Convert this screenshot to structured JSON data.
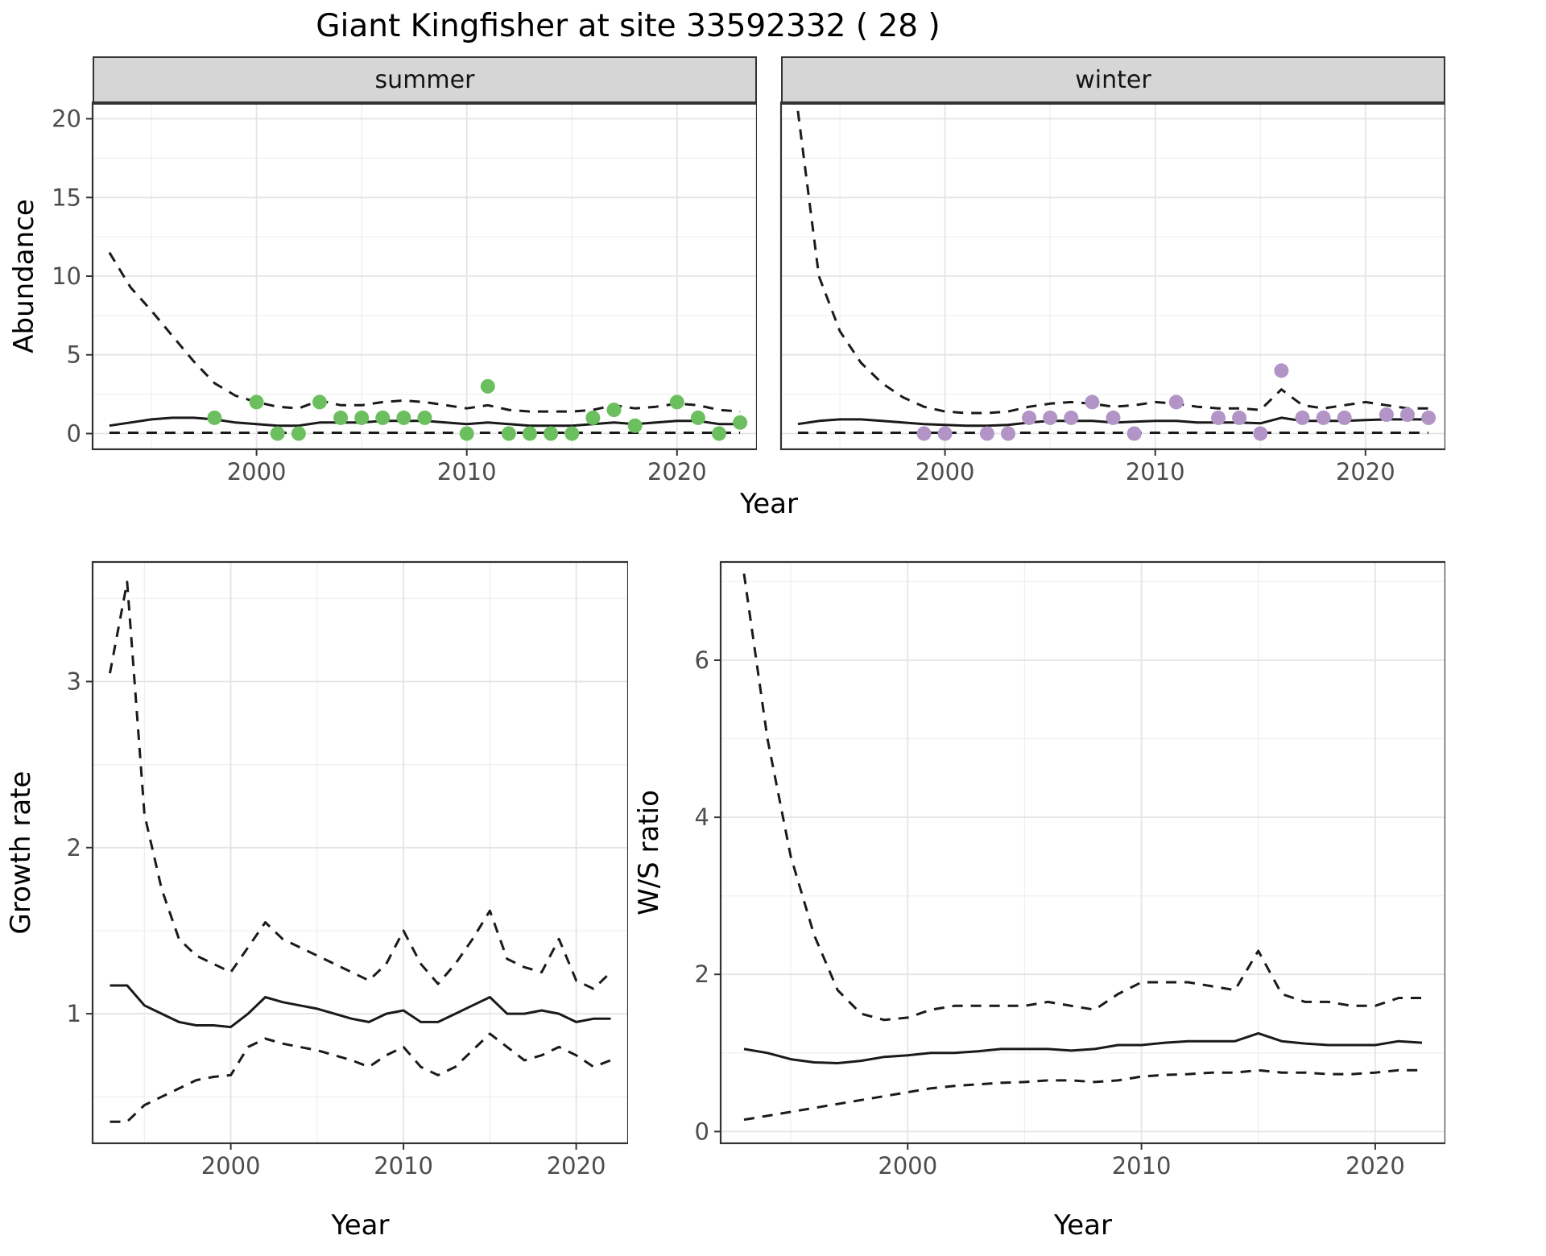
{
  "figure": {
    "title": "Giant Kingfisher at site 33592332 ( 28 )",
    "xlabel": "Year",
    "facets": [
      "summer",
      "winter"
    ],
    "abundance_ylabel": "Abundance",
    "growth_ylabel": "Growth rate",
    "ratio_ylabel": "W/S ratio"
  },
  "colors": {
    "summer_points": "#6cbf5f",
    "winter_points": "#b294c7",
    "line": "#1a1a1a",
    "strip_bg": "#d6d6d6",
    "strip_text": "#141414",
    "grid_major": "#e4e4e4",
    "grid_minor": "#f0f0f0",
    "panel_border": "#333333",
    "tick_text": "#4d4d4d"
  },
  "chart_data": [
    {
      "id": "abundance-summer",
      "type": "line+scatter",
      "facet_label": "summer",
      "xlabel": "Year",
      "ylabel": "Abundance",
      "xlim": [
        1992.2,
        2023.8
      ],
      "ylim": [
        -1,
        21
      ],
      "xticks": [
        2000,
        2010,
        2020
      ],
      "xminor": [
        1995,
        2005,
        2015
      ],
      "yticks": [
        0,
        5,
        10,
        15,
        20
      ],
      "yminor": [
        2.5,
        7.5,
        12.5,
        17.5
      ],
      "years": [
        1993,
        1994,
        1995,
        1996,
        1997,
        1998,
        1999,
        2000,
        2001,
        2002,
        2003,
        2004,
        2005,
        2006,
        2007,
        2008,
        2009,
        2010,
        2011,
        2012,
        2013,
        2014,
        2015,
        2016,
        2017,
        2018,
        2019,
        2020,
        2021,
        2022,
        2023
      ],
      "series": [
        {
          "name": "upper_95ci",
          "style": "dashed",
          "values": [
            11.5,
            9.3,
            7.8,
            6.2,
            4.6,
            3.2,
            2.4,
            2.0,
            1.7,
            1.6,
            2.1,
            1.8,
            1.8,
            2.0,
            2.1,
            2.0,
            1.8,
            1.6,
            1.8,
            1.5,
            1.4,
            1.4,
            1.4,
            1.5,
            1.8,
            1.6,
            1.7,
            1.9,
            1.8,
            1.5,
            1.4
          ]
        },
        {
          "name": "mean",
          "style": "solid",
          "values": [
            0.5,
            0.7,
            0.9,
            1.0,
            1.0,
            0.9,
            0.7,
            0.6,
            0.5,
            0.5,
            0.7,
            0.7,
            0.7,
            0.8,
            0.8,
            0.8,
            0.7,
            0.6,
            0.7,
            0.6,
            0.5,
            0.5,
            0.5,
            0.6,
            0.7,
            0.6,
            0.7,
            0.8,
            0.8,
            0.6,
            0.6
          ]
        },
        {
          "name": "lower_95ci",
          "style": "dashed",
          "values": [
            0.05,
            0.05,
            0.05,
            0.05,
            0.05,
            0.05,
            0.05,
            0.05,
            0.05,
            0.05,
            0.05,
            0.05,
            0.05,
            0.05,
            0.05,
            0.05,
            0.05,
            0.05,
            0.05,
            0.05,
            0.05,
            0.05,
            0.05,
            0.05,
            0.05,
            0.05,
            0.05,
            0.05,
            0.05,
            0.05,
            0.05
          ]
        }
      ],
      "points": {
        "name": "observed_abundance",
        "color_key": "summer_points",
        "x": [
          1998,
          2000,
          2001,
          2002,
          2003,
          2004,
          2005,
          2006,
          2007,
          2008,
          2010,
          2011,
          2012,
          2013,
          2014,
          2015,
          2016,
          2017,
          2018,
          2020,
          2021,
          2022,
          2023
        ],
        "y": [
          1,
          2,
          0,
          0,
          2,
          1,
          1,
          1,
          1,
          1,
          0,
          3,
          0,
          0,
          0,
          0,
          1,
          1.5,
          0.5,
          2,
          1,
          0,
          0.7
        ]
      }
    },
    {
      "id": "abundance-winter",
      "type": "line+scatter",
      "facet_label": "winter",
      "xlabel": "Year",
      "ylabel": "Abundance",
      "xlim": [
        1992.2,
        2023.8
      ],
      "ylim": [
        -1,
        21
      ],
      "xticks": [
        2000,
        2010,
        2020
      ],
      "xminor": [
        1995,
        2005,
        2015
      ],
      "yticks": [
        0,
        5,
        10,
        15,
        20
      ],
      "yminor": [
        2.5,
        7.5,
        12.5,
        17.5
      ],
      "years": [
        1993,
        1994,
        1995,
        1996,
        1997,
        1998,
        1999,
        2000,
        2001,
        2002,
        2003,
        2004,
        2005,
        2006,
        2007,
        2008,
        2009,
        2010,
        2011,
        2012,
        2013,
        2014,
        2015,
        2016,
        2017,
        2018,
        2019,
        2020,
        2021,
        2022,
        2023
      ],
      "series": [
        {
          "name": "upper_95ci",
          "style": "dashed",
          "values": [
            20.5,
            10.0,
            6.5,
            4.5,
            3.2,
            2.3,
            1.7,
            1.4,
            1.3,
            1.3,
            1.4,
            1.7,
            1.9,
            2.0,
            1.9,
            1.7,
            1.8,
            2.0,
            1.9,
            1.7,
            1.6,
            1.6,
            1.5,
            2.8,
            1.8,
            1.6,
            1.8,
            2.0,
            1.8,
            1.6,
            1.6
          ]
        },
        {
          "name": "mean",
          "style": "solid",
          "values": [
            0.6,
            0.8,
            0.9,
            0.9,
            0.8,
            0.7,
            0.6,
            0.55,
            0.5,
            0.5,
            0.55,
            0.7,
            0.8,
            0.8,
            0.8,
            0.7,
            0.75,
            0.8,
            0.8,
            0.7,
            0.7,
            0.7,
            0.65,
            1.0,
            0.8,
            0.8,
            0.8,
            0.85,
            0.9,
            0.9,
            0.9
          ]
        },
        {
          "name": "lower_95ci",
          "style": "dashed",
          "values": [
            0.05,
            0.05,
            0.05,
            0.05,
            0.05,
            0.05,
            0.05,
            0.05,
            0.05,
            0.05,
            0.05,
            0.05,
            0.05,
            0.05,
            0.05,
            0.05,
            0.05,
            0.05,
            0.05,
            0.05,
            0.05,
            0.05,
            0.05,
            0.05,
            0.05,
            0.05,
            0.05,
            0.05,
            0.05,
            0.05,
            0.05
          ]
        }
      ],
      "points": {
        "name": "observed_abundance",
        "color_key": "winter_points",
        "x": [
          1999,
          2000,
          2002,
          2003,
          2004,
          2005,
          2006,
          2007,
          2008,
          2009,
          2011,
          2013,
          2014,
          2015,
          2016,
          2017,
          2018,
          2019,
          2021,
          2022,
          2023
        ],
        "y": [
          0,
          0,
          0,
          0,
          1,
          1,
          1,
          2,
          1,
          0,
          2,
          1,
          1,
          0,
          4,
          1,
          1,
          1,
          1.2,
          1.2,
          1
        ]
      }
    },
    {
      "id": "growth",
      "type": "line",
      "xlabel": "Year",
      "ylabel": "Growth rate",
      "xlim": [
        1992,
        2023
      ],
      "ylim": [
        0.22,
        3.72
      ],
      "xticks": [
        2000,
        2010,
        2020
      ],
      "xminor": [
        1995,
        2005,
        2015
      ],
      "yticks": [
        1,
        2,
        3
      ],
      "yminor": [
        0.5,
        1.5,
        2.5,
        3.5
      ],
      "years": [
        1993,
        1994,
        1995,
        1996,
        1997,
        1998,
        1999,
        2000,
        2001,
        2002,
        2003,
        2004,
        2005,
        2006,
        2007,
        2008,
        2009,
        2010,
        2011,
        2012,
        2013,
        2014,
        2015,
        2016,
        2017,
        2018,
        2019,
        2020,
        2021,
        2022
      ],
      "series": [
        {
          "name": "upper_95ci",
          "style": "dashed",
          "values": [
            3.05,
            3.6,
            2.2,
            1.75,
            1.45,
            1.35,
            1.3,
            1.25,
            1.4,
            1.55,
            1.45,
            1.4,
            1.35,
            1.3,
            1.25,
            1.2,
            1.3,
            1.5,
            1.3,
            1.18,
            1.3,
            1.45,
            1.62,
            1.33,
            1.28,
            1.25,
            1.45,
            1.2,
            1.15,
            1.25
          ]
        },
        {
          "name": "mean",
          "style": "solid",
          "values": [
            1.17,
            1.17,
            1.05,
            1.0,
            0.95,
            0.93,
            0.93,
            0.92,
            1.0,
            1.1,
            1.07,
            1.05,
            1.03,
            1.0,
            0.97,
            0.95,
            1.0,
            1.02,
            0.95,
            0.95,
            1.0,
            1.05,
            1.1,
            1.0,
            1.0,
            1.02,
            1.0,
            0.95,
            0.97,
            0.97
          ]
        },
        {
          "name": "lower_95ci",
          "style": "dashed",
          "values": [
            0.35,
            0.35,
            0.45,
            0.5,
            0.55,
            0.6,
            0.62,
            0.63,
            0.8,
            0.85,
            0.82,
            0.8,
            0.78,
            0.75,
            0.72,
            0.68,
            0.75,
            0.8,
            0.68,
            0.63,
            0.68,
            0.78,
            0.88,
            0.8,
            0.72,
            0.75,
            0.8,
            0.75,
            0.68,
            0.72
          ]
        }
      ]
    },
    {
      "id": "ratio",
      "type": "line",
      "xlabel": "Year",
      "ylabel": "W/S ratio",
      "xlim": [
        1992,
        2023
      ],
      "ylim": [
        -0.15,
        7.25
      ],
      "xticks": [
        2000,
        2010,
        2020
      ],
      "xminor": [
        1995,
        2005,
        2015
      ],
      "yticks": [
        0,
        2,
        4,
        6
      ],
      "yminor": [
        1,
        3,
        5,
        7
      ],
      "years": [
        1993,
        1994,
        1995,
        1996,
        1997,
        1998,
        1999,
        2000,
        2001,
        2002,
        2003,
        2004,
        2005,
        2006,
        2007,
        2008,
        2009,
        2010,
        2011,
        2012,
        2013,
        2014,
        2015,
        2016,
        2017,
        2018,
        2019,
        2020,
        2021,
        2022
      ],
      "series": [
        {
          "name": "upper_95ci",
          "style": "dashed",
          "values": [
            7.1,
            5.0,
            3.5,
            2.5,
            1.8,
            1.5,
            1.42,
            1.45,
            1.55,
            1.6,
            1.6,
            1.6,
            1.6,
            1.65,
            1.6,
            1.55,
            1.75,
            1.9,
            1.9,
            1.9,
            1.85,
            1.8,
            2.3,
            1.75,
            1.65,
            1.65,
            1.6,
            1.6,
            1.7,
            1.7
          ]
        },
        {
          "name": "mean",
          "style": "solid",
          "values": [
            1.05,
            1.0,
            0.92,
            0.88,
            0.87,
            0.9,
            0.95,
            0.97,
            1.0,
            1.0,
            1.02,
            1.05,
            1.05,
            1.05,
            1.03,
            1.05,
            1.1,
            1.1,
            1.13,
            1.15,
            1.15,
            1.15,
            1.25,
            1.15,
            1.12,
            1.1,
            1.1,
            1.1,
            1.15,
            1.13
          ]
        },
        {
          "name": "lower_95ci",
          "style": "dashed",
          "values": [
            0.15,
            0.2,
            0.25,
            0.3,
            0.35,
            0.4,
            0.45,
            0.5,
            0.55,
            0.58,
            0.6,
            0.62,
            0.63,
            0.65,
            0.65,
            0.63,
            0.65,
            0.7,
            0.72,
            0.73,
            0.75,
            0.75,
            0.78,
            0.75,
            0.75,
            0.73,
            0.73,
            0.75,
            0.78,
            0.78
          ]
        }
      ]
    }
  ]
}
